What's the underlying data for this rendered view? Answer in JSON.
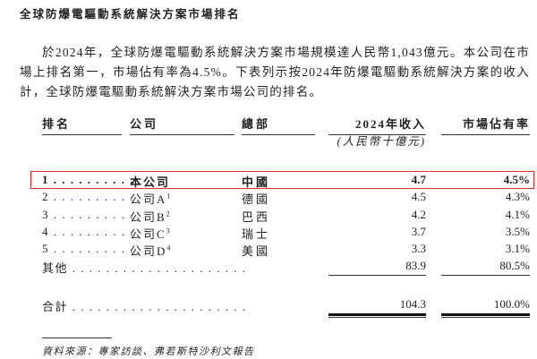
{
  "title": "全球防爆電驅動系統解決方案市場排名",
  "paragraph": "於2024年，全球防爆電驅動系統解決方案市場規模達人民幣1,043億元。本公司在市場上排名第一，市場佔有率為4.5%。下表列示按2024年防爆電驅動系統解決方案的收入計，全球防爆電驅動系統解決方案市場公司的排名。",
  "table": {
    "headers": {
      "rank": "排名",
      "company": "公司",
      "hq": "總部",
      "revenue": "2024年收入",
      "share": "市場佔有率"
    },
    "revenue_unit": "(人民幣十億元)",
    "rows": [
      {
        "rank": "1 . . . . . . . . . .",
        "company": "本公司",
        "sup": "",
        "hq": "中國",
        "revenue": "4.7",
        "share": "4.5%",
        "highlighted": true
      },
      {
        "rank": "2 . . . . . . . . . .",
        "company": "公司A",
        "sup": "1",
        "hq": "德國",
        "revenue": "4.5",
        "share": "4.3%"
      },
      {
        "rank": "3 . . . . . . . . . .",
        "company": "公司B",
        "sup": "2",
        "hq": "巴西",
        "revenue": "4.2",
        "share": "4.1%"
      },
      {
        "rank": "4 . . . . . . . . . .",
        "company": "公司C",
        "sup": "3",
        "hq": "瑞士",
        "revenue": "3.7",
        "share": "3.5%"
      },
      {
        "rank": "5 . . . . . . . . . .",
        "company": "公司D",
        "sup": "4",
        "hq": "美國",
        "revenue": "3.3",
        "share": "3.1%"
      }
    ],
    "others": {
      "label": "其他 . . . . . . . . . . . . . . . . . . . . .",
      "revenue": "83.9",
      "share": "80.5%"
    },
    "total": {
      "label": "合計 . . . . . . . . . . . . . . . . . . . . .",
      "revenue": "104.3",
      "share": "100.0%"
    }
  },
  "source": "資料來源：專家訪談、弗若斯特沙利文報告",
  "colors": {
    "highlight_border": "#e0302f"
  }
}
